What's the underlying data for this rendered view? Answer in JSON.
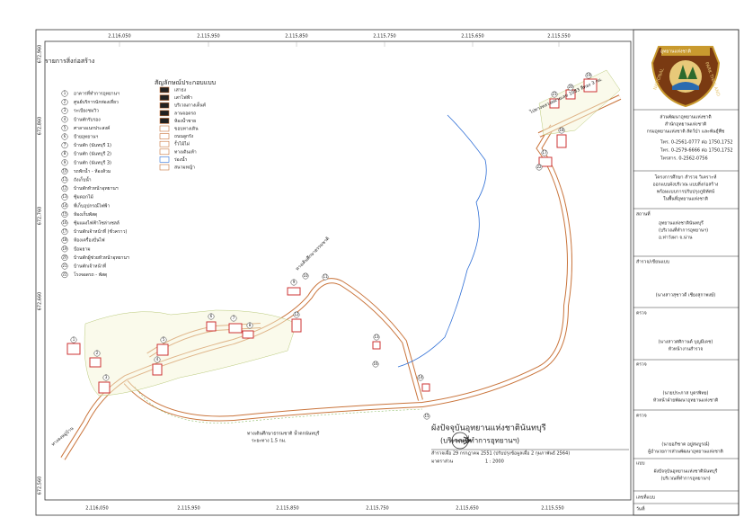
{
  "map": {
    "title": "ผังปัจจุบันอุทยานแห่งชาตินันทบุรี",
    "subtitle": "(บริเวณที่ทำการอุทยานฯ)",
    "survey_note": "สำรวจเมื่อ 29 กรกฎาคม 2551 (ปรับปรุงข้อมูลเมื่อ 2 กุมภาพันธ์ 2564)",
    "scale_label": "มาตราส่วน",
    "scale": "1 : 2000",
    "top_coords": [
      "2,116,050",
      "2,115,950",
      "2,115,850",
      "2,115,750",
      "2,115,650",
      "2,115,550"
    ],
    "bottom_coords": [
      "2,116,050",
      "2,115,950",
      "2,115,850",
      "2,115,750",
      "2,115,650",
      "2,115,550"
    ],
    "left_coords": [
      "672,960",
      "672,860",
      "672,760",
      "672,660",
      "672,560"
    ],
    "annotations": [
      "ทางเดินศึกษาธรรมชาติ น้ำตกนันทบุรี",
      "ระยะทาง 1.5 กม.",
      "ไปทางหลวงหมายเลข 1083 สีทอง 3 กม.",
      "ทางลงหมู่บ้าน",
      "ทางเดินศึกษาธรรมชาติ"
    ],
    "markers": [
      "1",
      "2",
      "3",
      "4",
      "5",
      "6",
      "7",
      "8",
      "9",
      "10",
      "11",
      "12",
      "13",
      "14",
      "15",
      "16",
      "17",
      "18",
      "19",
      "20",
      "21",
      "22"
    ]
  },
  "legend": {
    "title": "รายการสิ่งก่อสร้าง",
    "items": [
      {
        "number": "1",
        "label": "อาคารที่ทำการอุทยานฯ"
      },
      {
        "number": "2",
        "label": "ศูนย์บริการนักท่องเที่ยว"
      },
      {
        "number": "3",
        "label": "ระเบียงชมวิว"
      },
      {
        "number": "4",
        "label": "บ้านพักรับรอง"
      },
      {
        "number": "5",
        "label": "ศาลาอเนกประสงค์"
      },
      {
        "number": "6",
        "label": "ป้ายอุทยานฯ"
      },
      {
        "number": "7",
        "label": "บ้านพัก (นันทบุรี 1)"
      },
      {
        "number": "8",
        "label": "บ้านพัก (นันทบุรี 2)"
      },
      {
        "number": "9",
        "label": "บ้านพัก (นันทบุรี 3)"
      },
      {
        "number": "10",
        "label": "รถพักน้ำ - ห้องส้วม"
      },
      {
        "number": "11",
        "label": "ถังเก็บน้ำ"
      },
      {
        "number": "12",
        "label": "บ้านพักหัวหน้าอุทยานฯ"
      },
      {
        "number": "13",
        "label": "ซุ้มดอกไม้"
      },
      {
        "number": "14",
        "label": "ที่เก็บอุปกรณ์ไฟฟ้า"
      },
      {
        "number": "15",
        "label": "ห้องเก็บพัสดุ"
      },
      {
        "number": "16",
        "label": "ซุ้มแผงไฟฟ้าโซล่าเซลล์"
      },
      {
        "number": "17",
        "label": "บ้านพักเจ้าหน้าที่ (ชั่วคราว)"
      },
      {
        "number": "18",
        "label": "ห้องเครื่องปั่นไฟ"
      },
      {
        "number": "19",
        "label": "ป้อมยาม"
      },
      {
        "number": "20",
        "label": "บ้านพักผู้ช่วยหัวหน้าอุทยานฯ"
      },
      {
        "number": "21",
        "label": "บ้านพักเจ้าหน้าที่"
      },
      {
        "number": "22",
        "label": "โรงจอดรถ - พัสดุ"
      }
    ]
  },
  "symbols": {
    "title": "สัญลักษณ์ประกอบแบบ",
    "items": [
      "เสาธง",
      "เสาไฟฟ้า",
      "บริเวณกางเต็นท์",
      "ลานจอดรถ",
      "ห้องน้ำชาย",
      "ขอบทางเดิน",
      "ถนนลูกรัง",
      "รั้วไม้ไผ่",
      "ทางเดินเท้า",
      "ร่องน้ำ",
      "สนามหญ้า"
    ]
  },
  "title_block": {
    "logo_top": "อุทยานแห่งชาติ",
    "logo_left": "NATIONAL",
    "logo_right": "PARK THAILAND",
    "org": [
      "ส่วนพัฒนาอุทยานแห่งชาติ",
      "สำนักอุทยานแห่งชาติ",
      "กรมอุทยานแห่งชาติ สัตว์ป่า และพันธุ์พืช"
    ],
    "contacts": [
      "โทร. 0-2561-0777 ต่อ 1750,1752",
      "โทร. 0-2579-6666 ต่อ 1750,1752",
      "โทรสาร. 0-2562-0756"
    ],
    "project": [
      "โครงการศึกษา สำรวจ วิเคราะห์",
      "ออกแบบผังบริเวณ แบบสิ่งก่อสร้าง",
      "พร้อมแบบการปรับปรุงภูมิทัศน์",
      "ในพื้นที่อุทยานแห่งชาติ"
    ],
    "place_label": "สถานที่",
    "place": [
      "อุทยานแห่งชาตินันทบุรี",
      "(บริเวณที่ทำการอุทยานฯ)",
      "อ.ท่าวังผา จ.น่าน"
    ],
    "drafter_label": "สำรวจ/เขียนแบบ",
    "drafter": "(นางสาวสุชาวดี เชียงสุกาพงษ์)",
    "checks": [
      {
        "label": "ตรวจ",
        "name": "(นางสาวศศิกานต์ บุญมีเดช)",
        "role": "หัวหน้างานสำรวจ"
      },
      {
        "label": "ตรวจ",
        "name": "(นายประภาส บุตรพิทย)",
        "role": "หัวหน้าฝ่ายพัฒนาอุทยานแห่งชาติ"
      },
      {
        "label": "ตรวจ",
        "name": "(นายอภิชาต อยู่สมบูรณ์)",
        "role": "ผู้อำนวยการส่วนพัฒนาอุทยานแห่งชาติ"
      }
    ],
    "plan_label": "แบบ",
    "plan": [
      "ผังปัจจุบันอุทยานแห่งชาตินันทบุรี",
      "(บริเวณที่ทำการอุทยานฯ)"
    ],
    "sheet_label": "เลขที่แบบ",
    "date_label": "วันที่"
  }
}
